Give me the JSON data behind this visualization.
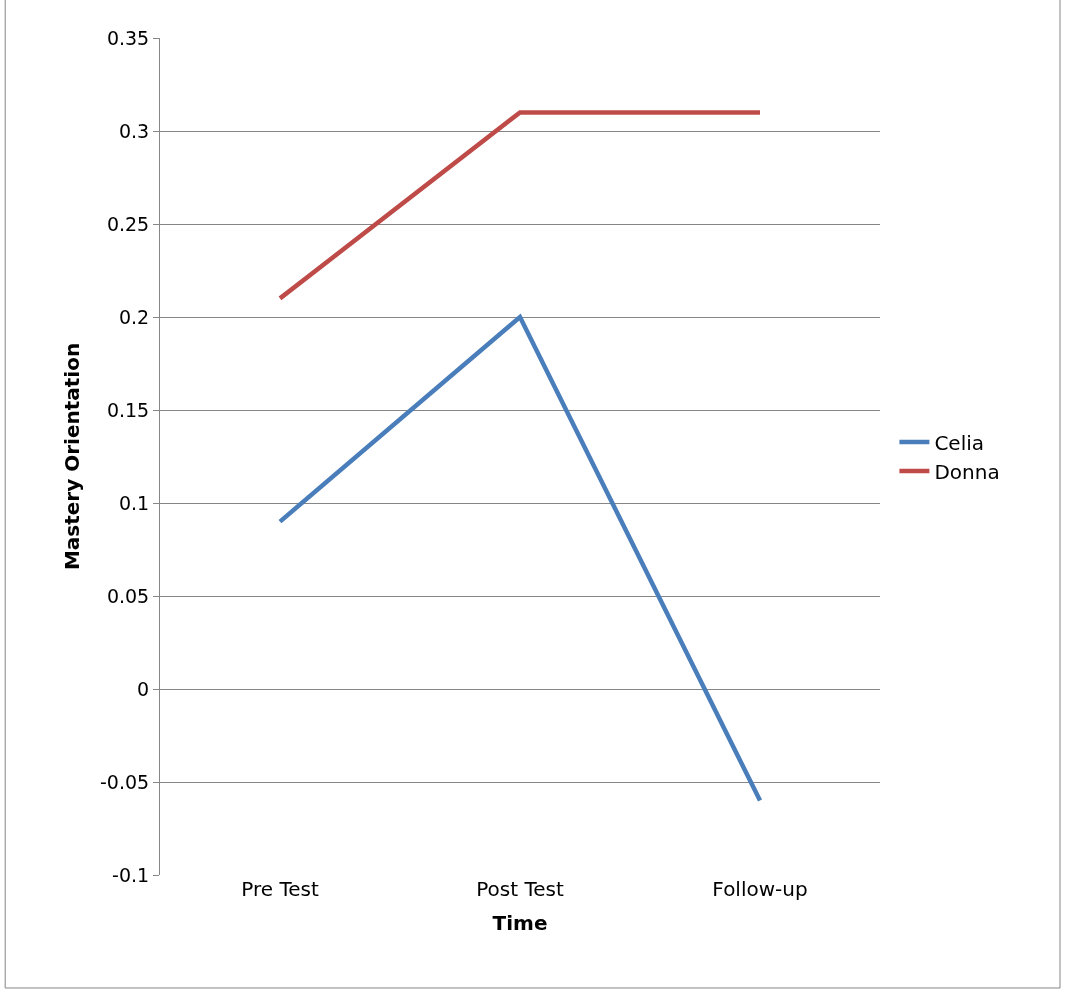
{
  "chart_data": {
    "type": "line",
    "xlabel": "Time",
    "ylabel": "Mastery Orientation",
    "categories": [
      "Pre Test",
      "Post Test",
      "Follow-up"
    ],
    "series": [
      {
        "name": "Celia",
        "color": "#4a7ebb",
        "values": [
          0.09,
          0.2,
          -0.06
        ]
      },
      {
        "name": "Donna",
        "color": "#be4b48",
        "values": [
          0.21,
          0.31,
          0.31
        ]
      }
    ],
    "ylim": [
      -0.1,
      0.35
    ],
    "yticks": [
      -0.1,
      -0.05,
      0,
      0.05,
      0.1,
      0.15,
      0.2,
      0.25,
      0.3,
      0.35
    ],
    "grid": "y",
    "legend": "right",
    "marker": "none",
    "line_style": "solid"
  }
}
